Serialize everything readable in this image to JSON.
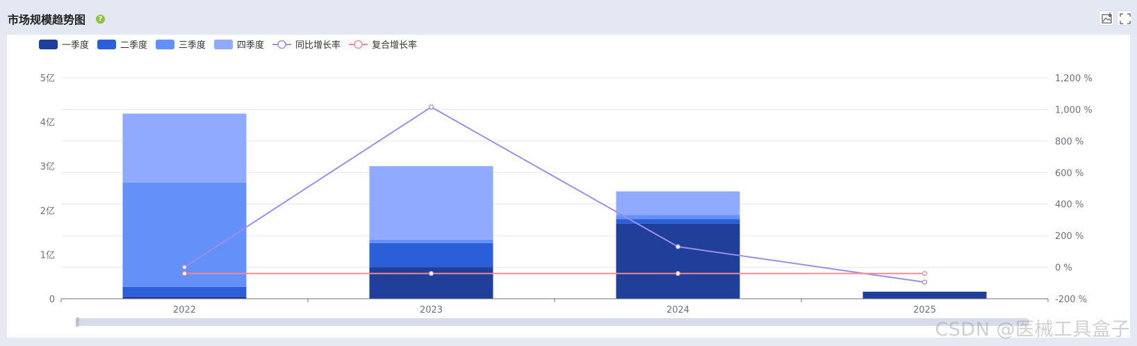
{
  "header": {
    "title": "市场规模趋势图",
    "help_glyph": "?",
    "tools": [
      "save-image-icon",
      "fullscreen-icon"
    ]
  },
  "watermark": "CSDN @医械工具盒子",
  "chart_data": {
    "type": "bar",
    "categories": [
      "2022",
      "2023",
      "2024",
      "2025"
    ],
    "series": [
      {
        "name": "一季度",
        "kind": "bar",
        "axis": "left",
        "color": "#1f3f9a",
        "values": [
          0.05,
          0.72,
          1.7,
          0.16
        ]
      },
      {
        "name": "二季度",
        "kind": "bar",
        "axis": "left",
        "color": "#2b5fd9",
        "values": [
          0.22,
          0.54,
          0.1,
          0
        ]
      },
      {
        "name": "三季度",
        "kind": "bar",
        "axis": "left",
        "color": "#6490fa",
        "values": [
          2.36,
          0.08,
          0.1,
          0
        ]
      },
      {
        "name": "四季度",
        "kind": "bar",
        "axis": "left",
        "color": "#8faaff",
        "values": [
          1.56,
          1.66,
          0.53,
          0
        ]
      },
      {
        "name": "同比增长率",
        "kind": "line",
        "axis": "right",
        "color": "#9a8ee6",
        "values": [
          0,
          1015,
          130,
          -95
        ]
      },
      {
        "name": "复合增长率",
        "kind": "line",
        "axis": "right",
        "color": "#ee8a93",
        "values": [
          -40,
          -40,
          -40,
          -40
        ]
      }
    ],
    "y_left": {
      "min": 0,
      "max": 5,
      "ticks": [
        {
          "v": 0,
          "label": "0"
        },
        {
          "v": 1,
          "label": "1亿"
        },
        {
          "v": 2,
          "label": "2亿"
        },
        {
          "v": 3,
          "label": "3亿"
        },
        {
          "v": 4,
          "label": "4亿"
        },
        {
          "v": 5,
          "label": "5亿"
        }
      ]
    },
    "y_right": {
      "min": -200,
      "max": 1200,
      "ticks": [
        {
          "v": -200,
          "label": "-200 %"
        },
        {
          "v": 0,
          "label": "0 %"
        },
        {
          "v": 200,
          "label": "200 %"
        },
        {
          "v": 400,
          "label": "400 %"
        },
        {
          "v": 600,
          "label": "600 %"
        },
        {
          "v": 800,
          "label": "800 %"
        },
        {
          "v": 1000,
          "label": "1,000 %"
        },
        {
          "v": 1200,
          "label": "1,200 %"
        }
      ]
    },
    "grid": true,
    "legend_position": "top-left",
    "data_zoom": true
  }
}
